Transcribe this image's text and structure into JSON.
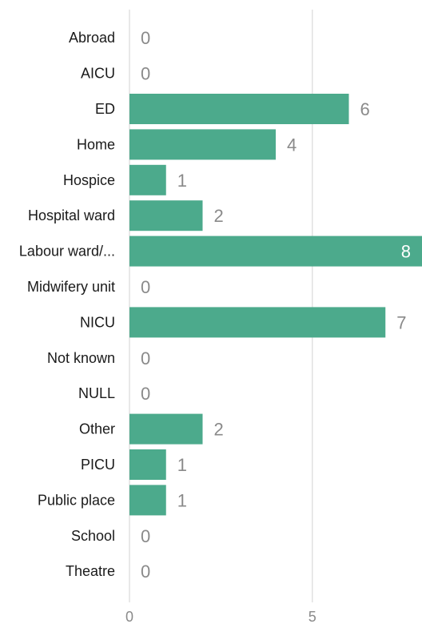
{
  "chart_data": {
    "type": "bar",
    "orientation": "horizontal",
    "categories": [
      "Abroad",
      "AICU",
      "ED",
      "Home",
      "Hospice",
      "Hospital ward",
      "Labour ward/...",
      "Midwifery unit",
      "NICU",
      "Not known",
      "NULL",
      "Other",
      "PICU",
      "Public place",
      "School",
      "Theatre"
    ],
    "values": [
      0,
      0,
      6,
      4,
      1,
      2,
      8,
      0,
      7,
      0,
      0,
      2,
      1,
      1,
      0,
      0
    ],
    "title": "",
    "xlabel": "",
    "ylabel": "",
    "xlim": [
      0,
      8
    ],
    "x_ticks": [
      0,
      5
    ],
    "x_tick_labels": [
      "0",
      "5"
    ],
    "grid": true,
    "legend": "none",
    "bar_color": "#4caa8c",
    "data_label_color": "#8a8a8a",
    "data_label_inside_color": "#ffffff",
    "category_label_color": "#1a1a1a",
    "gridline_color": "#e1e1e1"
  }
}
